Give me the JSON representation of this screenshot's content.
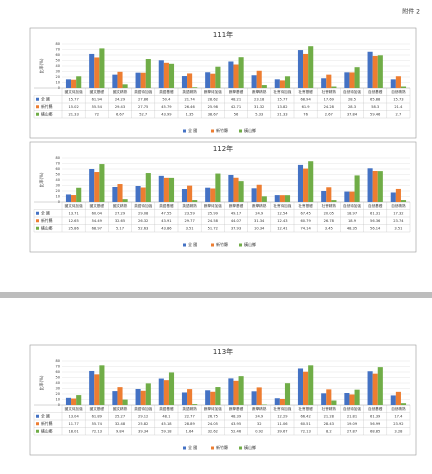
{
  "header": "附件 2",
  "chart_data": [
    {
      "type": "bar",
      "title": "111年",
      "y_label": "比率(%)",
      "categories": [
        "國文待加強",
        "國文基礎",
        "國文精熟",
        "英語待加強",
        "英語基礎",
        "英語精熟",
        "數學待加強",
        "數學基礎",
        "數學精熟",
        "社會待加強",
        "社會基礎",
        "社會精熟",
        "自然待加強",
        "自然基礎",
        "自然精熟"
      ],
      "series": [
        {
          "name": "全 國",
          "color": "#4472c4",
          "values": [
            15.77,
            61.94,
            24.29,
            27.86,
            50.4,
            21.74,
            28.62,
            48.21,
            23.18,
            15.77,
            68.94,
            17.69,
            28.5,
            65.88,
            15.73
          ]
        },
        {
          "name": "新竹縣",
          "color": "#ed7d31",
          "values": [
            15.02,
            55.54,
            29.43,
            27.75,
            45.79,
            26.46,
            25.98,
            42.71,
            31.32,
            13.82,
            61.9,
            24.28,
            28.3,
            58.3,
            21.4
          ]
        },
        {
          "name": "橫山鄉",
          "color": "#70ad47",
          "values": [
            21.33,
            72,
            6.67,
            52.7,
            43.99,
            1.35,
            38.67,
            56,
            5.33,
            21.33,
            76,
            2.67,
            37.84,
            59.46,
            2.7
          ]
        }
      ],
      "ylim": [
        0,
        80
      ],
      "yticks": [
        0,
        10,
        20,
        30,
        40,
        50,
        60,
        70,
        80
      ],
      "grid": true
    },
    {
      "type": "bar",
      "title": "112年",
      "y_label": "比率(%)",
      "categories": [
        "國文待加強",
        "國文基礎",
        "國文精熟",
        "英語待加強",
        "英語基礎",
        "英語精熟",
        "數學待加強",
        "數學基礎",
        "數學精熟",
        "社會待加強",
        "社會基礎",
        "社會精熟",
        "自然待加強",
        "自然基礎",
        "自然精熟"
      ],
      "series": [
        {
          "name": "全 國",
          "color": "#4472c4",
          "values": [
            13.71,
            60.04,
            27.29,
            29.08,
            47.55,
            23.59,
            25.99,
            49.17,
            24.9,
            12.54,
            67.45,
            20.05,
            18.97,
            61.31,
            17.32
          ]
        },
        {
          "name": "新竹縣",
          "color": "#ed7d31",
          "values": [
            12.65,
            54.49,
            32.65,
            26.32,
            43.91,
            29.77,
            24.58,
            44.07,
            31.34,
            12.43,
            60.79,
            26.78,
            18.9,
            56.36,
            23.74
          ]
        },
        {
          "name": "橫山鄉",
          "color": "#70ad47",
          "values": [
            25.86,
            68.97,
            5.17,
            52.63,
            43.86,
            3.51,
            51.72,
            37.93,
            10.34,
            12.41,
            74.14,
            3.45,
            48.35,
            56.14,
            3.51
          ]
        }
      ],
      "ylim": [
        0,
        80
      ],
      "yticks": [
        0,
        10,
        20,
        30,
        40,
        50,
        60,
        70,
        80
      ],
      "grid": true
    },
    {
      "type": "bar",
      "title": "113年",
      "y_label": "比率(%)",
      "categories": [
        "國文待加強",
        "國文基礎",
        "國文精熟",
        "英語待加強",
        "英語基礎",
        "英語精熟",
        "數學待加強",
        "數學基礎",
        "數學精熟",
        "社會待加強",
        "社會基礎",
        "社會精熟",
        "自然待加強",
        "自然基礎",
        "自然精熟"
      ],
      "series": [
        {
          "name": "全 國",
          "color": "#4472c4",
          "values": [
            13.04,
            61.89,
            25.27,
            29.12,
            48.1,
            22.77,
            26.75,
            48.39,
            24.9,
            12.29,
            66.42,
            21.28,
            21.81,
            61.39,
            17.4
          ]
        },
        {
          "name": "新竹縣",
          "color": "#ed7d31",
          "values": [
            11.77,
            55.74,
            32.48,
            25.82,
            45.18,
            28.89,
            24.05,
            43.95,
            32,
            11.06,
            60.51,
            28.43,
            19.09,
            56.99,
            23.92
          ]
        },
        {
          "name": "橫山鄉",
          "color": "#70ad47",
          "values": [
            18.01,
            72.13,
            9.84,
            39.34,
            59.18,
            1.64,
            32.62,
            52.46,
            0.92,
            39.67,
            72.13,
            8.2,
            27.87,
            68.85,
            3.28
          ]
        }
      ],
      "ylim": [
        0,
        80
      ],
      "yticks": [
        0,
        10,
        20,
        30,
        40,
        50,
        60,
        70,
        80
      ],
      "grid": true
    }
  ]
}
